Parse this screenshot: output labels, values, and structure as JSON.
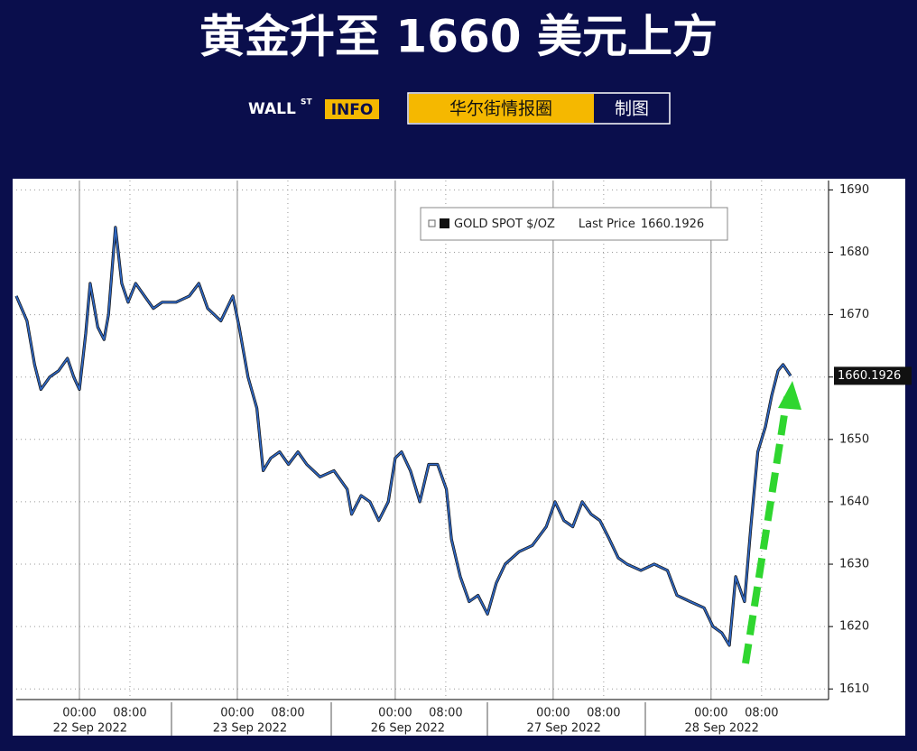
{
  "header": {
    "title": "黄金升至 1660 美元上方",
    "logo_wall": "WALL",
    "logo_st": "ST",
    "logo_info": "INFO",
    "source": "华尔街情报圈",
    "made": "制图"
  },
  "chart_data": {
    "type": "line",
    "series": [
      {
        "name": "GOLD SPOT $/OZ",
        "color": "#2f66c0",
        "x": [
          0,
          1.7,
          2.9,
          3.9,
          5.3,
          6.7,
          8.1,
          9.1,
          10,
          11,
          11.7,
          12.9,
          13.9,
          14.6,
          15.7,
          16.7,
          17.7,
          18.9,
          20.3,
          21.7,
          23.1,
          25.3,
          27.4,
          28.9,
          30.3,
          32.4,
          34.3,
          35.3,
          36.7,
          38.1,
          39.1,
          40.3,
          41.7,
          43.1,
          44.6,
          46,
          48.1,
          50.3,
          52.4,
          53.1,
          54.6,
          56,
          57.4,
          58.9,
          60,
          61,
          62.4,
          63.9,
          65.3,
          66.7,
          68.1,
          68.9,
          70.3,
          71.7,
          73.1,
          74.6,
          76,
          77.4,
          79.6,
          81.7,
          83.9,
          85.3,
          86.7,
          88.1,
          89.6,
          91,
          92.4,
          93.9,
          95.3,
          96.7,
          98.9,
          101,
          103.1,
          104.6,
          106.7,
          108.9,
          110.3,
          111.7,
          112.9,
          113.9,
          115.3,
          116.3,
          117.4,
          118.6,
          119.6,
          120.6,
          121.4,
          122.6
        ],
        "values": [
          1673,
          1669,
          1662,
          1658,
          1660,
          1661,
          1663,
          1660,
          1658,
          1667,
          1675,
          1668,
          1666,
          1670,
          1684,
          1675,
          1672,
          1675,
          1673,
          1671,
          1672,
          1672,
          1673,
          1675,
          1671,
          1669,
          1673,
          1668,
          1660,
          1655,
          1645,
          1647,
          1648,
          1646,
          1648,
          1646,
          1644,
          1645,
          1642,
          1638,
          1641,
          1640,
          1637,
          1640,
          1647,
          1648,
          1645,
          1640,
          1646,
          1646,
          1642,
          1634,
          1628,
          1624,
          1625,
          1622,
          1627,
          1630,
          1632,
          1633,
          1636,
          1640,
          1637,
          1636,
          1640,
          1638,
          1637,
          1634,
          1631,
          1630,
          1629,
          1630,
          1629,
          1625,
          1624,
          1623,
          1620,
          1619,
          1617,
          1628,
          1624,
          1636,
          1648,
          1652,
          1657,
          1661,
          1662,
          1660.1926
        ]
      }
    ],
    "legend_text": "Last Price",
    "xlim": [
      0,
      128.6
    ],
    "xticks": [
      {
        "value": 10,
        "label": "00:00"
      },
      {
        "value": 18,
        "label": "08:00"
      },
      {
        "value": 35,
        "label": "00:00"
      },
      {
        "value": 43,
        "label": "08:00"
      },
      {
        "value": 60,
        "label": "00:00"
      },
      {
        "value": 68,
        "label": "08:00"
      },
      {
        "value": 85,
        "label": "00:00"
      },
      {
        "value": 93,
        "label": "08:00"
      },
      {
        "value": 110,
        "label": "00:00"
      },
      {
        "value": 118,
        "label": "08:00"
      }
    ],
    "day_labels": [
      {
        "value": 11.7,
        "label": "22 Sep 2022"
      },
      {
        "value": 37,
        "label": "23 Sep 2022"
      },
      {
        "value": 62,
        "label": "26 Sep 2022"
      },
      {
        "value": 86.7,
        "label": "27 Sep 2022"
      },
      {
        "value": 111.7,
        "label": "28 Sep 2022"
      }
    ],
    "ylim": [
      1608.3,
      1691.5
    ],
    "yticks": [
      1610,
      1620,
      1630,
      1640,
      1650,
      1660,
      1670,
      1680,
      1690
    ],
    "grid": true
  }
}
